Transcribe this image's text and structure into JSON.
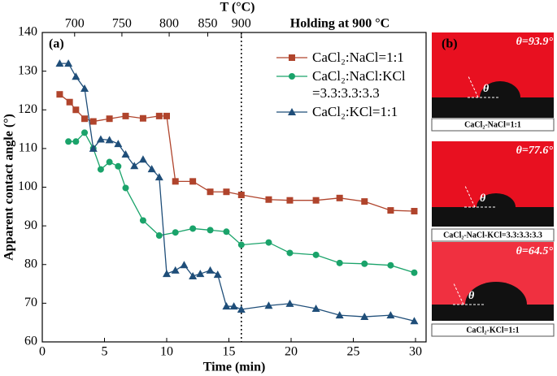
{
  "chart_data": {
    "type": "line",
    "xlabel": "Time (min)",
    "ylabel": "Apparent contact angle (°)",
    "x2label": "T (°C)",
    "panel_label": "(a)",
    "annotation": "Holding at 900 °C",
    "vline": 16,
    "xlim": [
      0,
      30
    ],
    "ylim": [
      60,
      140
    ],
    "xticks": [
      0,
      5,
      10,
      15,
      20,
      25,
      30
    ],
    "yticks": [
      60,
      70,
      80,
      90,
      100,
      110,
      120,
      130,
      140
    ],
    "x2ticks": [
      {
        "value": 2.6,
        "label": "700"
      },
      {
        "value": 6.4,
        "label": "750"
      },
      {
        "value": 10.2,
        "label": "800"
      },
      {
        "value": 13.3,
        "label": "850"
      },
      {
        "value": 16,
        "label": "900"
      }
    ],
    "legend": "upper right",
    "series": [
      {
        "name": "CaCl₂:NaCl=1:1",
        "color": "#b0442c",
        "marker": "square",
        "x": [
          1.4,
          2.2,
          2.7,
          3.4,
          4.1,
          5.4,
          6.7,
          8.1,
          9.4,
          10.0,
          10.7,
          12.1,
          13.5,
          14.8,
          16,
          18.2,
          19.9,
          22,
          23.9,
          25.9,
          28,
          29.9
        ],
        "values": [
          124,
          122,
          120,
          117.7,
          117,
          117.7,
          118.4,
          117.8,
          118.4,
          118.4,
          101.5,
          101.5,
          98.8,
          98.8,
          98,
          96.8,
          96.6,
          96.6,
          97.2,
          96.3,
          94,
          93.8
        ]
      },
      {
        "name": "CaCl₂:NaCl:KCl =3.3:3.3:3.3",
        "color": "#1aa36a",
        "marker": "circle",
        "x": [
          2.1,
          2.7,
          3.4,
          4.1,
          4.7,
          5.4,
          6.1,
          6.7,
          8.1,
          9.4,
          10.7,
          12.1,
          13.5,
          14.8,
          16,
          18.2,
          19.9,
          22,
          23.9,
          25.9,
          28,
          29.9
        ],
        "values": [
          111.8,
          111.8,
          114.1,
          110,
          104.6,
          106.5,
          105.4,
          99.8,
          91.4,
          87.5,
          88.3,
          89.3,
          88.9,
          88.5,
          85.1,
          85.7,
          83,
          82.5,
          80.4,
          80.2,
          79.8,
          77.9
        ]
      },
      {
        "name": "CaCl₂:KCl=1:1",
        "color": "#1f4e79",
        "marker": "triangle",
        "x": [
          1.4,
          2.1,
          2.7,
          3.4,
          4.1,
          4.7,
          5.4,
          6.1,
          6.7,
          7.4,
          8.1,
          8.8,
          9.4,
          10.0,
          10.7,
          11.4,
          12.1,
          12.7,
          13.5,
          14.1,
          14.8,
          15.4,
          16,
          18.2,
          19.9,
          22,
          23.9,
          25.9,
          28,
          29.9
        ],
        "values": [
          132,
          132,
          128.6,
          125.5,
          110,
          112.4,
          112.2,
          111.2,
          108.5,
          105.5,
          107.2,
          104.7,
          102.6,
          77.6,
          78.5,
          79.9,
          77,
          77.6,
          78.5,
          77.4,
          69.2,
          69.2,
          68.4,
          69.4,
          69.9,
          68.6,
          66.9,
          66.5,
          66.9,
          65.4
        ]
      }
    ]
  },
  "panel_b": {
    "label": "(b)",
    "photos": [
      {
        "angle": "θ=93.9°",
        "symbol": "θ",
        "caption": "CaCl₂-NaCl=1:1"
      },
      {
        "angle": "θ=77.6°",
        "symbol": "θ",
        "caption": "CaCl₂-NaCl-KCl=3.3:3.3:3.3"
      },
      {
        "angle": "θ=64.5°",
        "symbol": "θ",
        "caption": "CaCl₂-KCl=1:1"
      }
    ]
  }
}
